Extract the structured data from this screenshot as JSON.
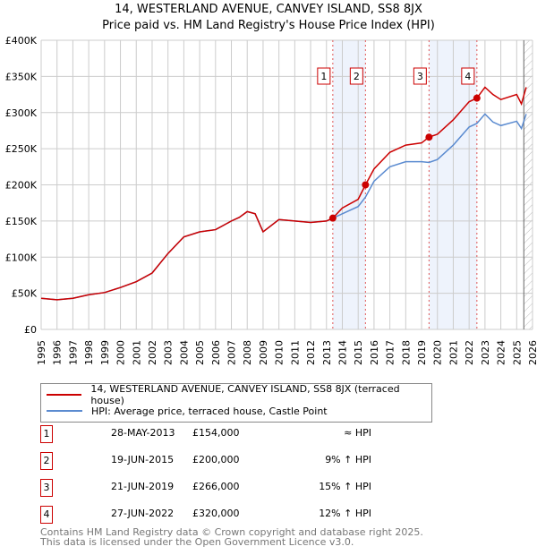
{
  "title": "14, WESTERLAND AVENUE, CANVEY ISLAND, SS8 8JX",
  "subtitle": "Price paid vs. HM Land Registry's House Price Index (HPI)",
  "chart_data": {
    "type": "line",
    "title": "14, WESTERLAND AVENUE, CANVEY ISLAND, SS8 8JX — Price paid vs. HM Land Registry's House Price Index (HPI)",
    "xlim": [
      1995,
      2026
    ],
    "ylim": [
      0,
      400000
    ],
    "yticks": [
      0,
      50000,
      100000,
      150000,
      200000,
      250000,
      300000,
      350000,
      400000
    ],
    "ytick_labels": [
      "£0",
      "£50K",
      "£100K",
      "£150K",
      "£200K",
      "£250K",
      "£300K",
      "£350K",
      "£400K"
    ],
    "xticks": [
      "1995",
      "1996",
      "1997",
      "1998",
      "1999",
      "2000",
      "2001",
      "2002",
      "2003",
      "2004",
      "2005",
      "2006",
      "2007",
      "2008",
      "2009",
      "2010",
      "2011",
      "2012",
      "2013",
      "2014",
      "2015",
      "2016",
      "2017",
      "2018",
      "2019",
      "2020",
      "2021",
      "2022",
      "2023",
      "2024",
      "2025",
      "2026"
    ],
    "grid": true,
    "x": [
      1995,
      1996,
      1997,
      1998,
      1999,
      2000,
      2001,
      2002,
      2003,
      2004,
      2005,
      2006,
      2007,
      2007.5,
      2008,
      2008.5,
      2009,
      2010,
      2011,
      2012,
      2013,
      2013.4,
      2014,
      2015,
      2015.46,
      2016,
      2017,
      2018,
      2019,
      2019.47,
      2020,
      2021,
      2022,
      2022.49,
      2023,
      2023.5,
      2024,
      2025,
      2025.3,
      2025.6
    ],
    "series": [
      {
        "name": "14, WESTERLAND AVENUE, CANVEY ISLAND, SS8 8JX (terraced house)",
        "color": "#cc0000",
        "values": [
          43000,
          41000,
          43000,
          48000,
          51000,
          58000,
          66000,
          78000,
          105000,
          128000,
          135000,
          138000,
          150000,
          155000,
          163000,
          160000,
          135000,
          152000,
          150000,
          148000,
          150000,
          154000,
          168000,
          180000,
          200000,
          222000,
          245000,
          255000,
          258000,
          266000,
          270000,
          290000,
          315000,
          320000,
          335000,
          325000,
          318000,
          325000,
          312000,
          335000
        ]
      },
      {
        "name": "HPI: Average price, terraced house, Castle Point",
        "color": "#5b8bd0",
        "values": [
          43000,
          41000,
          43000,
          48000,
          51000,
          58000,
          66000,
          78000,
          105000,
          128000,
          135000,
          138000,
          150000,
          155000,
          163000,
          160000,
          135000,
          152000,
          150000,
          148000,
          150000,
          154000,
          160000,
          170000,
          183000,
          205000,
          225000,
          232000,
          232000,
          231000,
          235000,
          255000,
          280000,
          285000,
          298000,
          287000,
          282000,
          288000,
          278000,
          298000
        ]
      }
    ],
    "sales": [
      {
        "label": "1",
        "x": 2013.4,
        "price": 154000,
        "date": "28-MAY-2013",
        "price_text": "£154,000",
        "hpi": "≈ HPI"
      },
      {
        "label": "2",
        "x": 2015.46,
        "price": 200000,
        "date": "19-JUN-2015",
        "price_text": "£200,000",
        "hpi": "9% ↑ HPI"
      },
      {
        "label": "3",
        "x": 2019.47,
        "price": 266000,
        "date": "21-JUN-2019",
        "price_text": "£266,000",
        "hpi": "15% ↑ HPI"
      },
      {
        "label": "4",
        "x": 2022.49,
        "price": 320000,
        "date": "27-JUN-2022",
        "price_text": "£320,000",
        "hpi": "12% ↑ HPI"
      }
    ],
    "shaded_ranges": [
      [
        2013.4,
        2015.46
      ],
      [
        2019.47,
        2022.49
      ]
    ],
    "hatched_from": 2025.45,
    "legend_placement": "below"
  },
  "footer": [
    "Contains HM Land Registry data © Crown copyright and database right 2025.",
    "This data is licensed under the Open Government Licence v3.0."
  ]
}
